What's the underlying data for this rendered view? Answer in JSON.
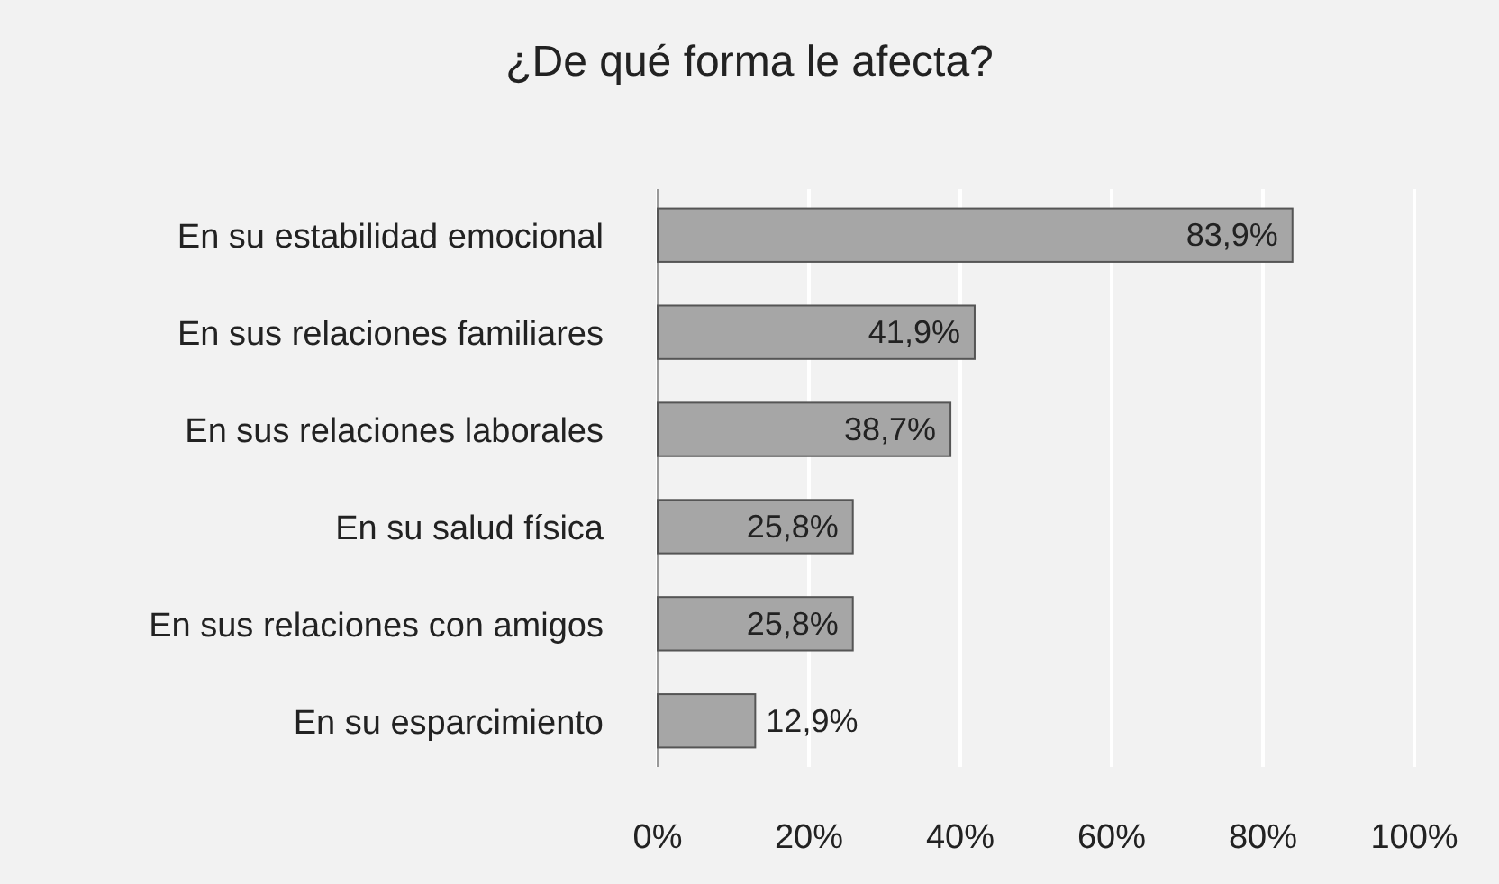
{
  "chart_data": {
    "type": "bar",
    "orientation": "horizontal",
    "title": "¿De qué forma le afecta?",
    "categories": [
      "En su estabilidad emocional",
      "En sus relaciones familiares",
      "En sus relaciones laborales",
      "En su salud física",
      "En sus relaciones con amigos",
      "En su esparcimiento"
    ],
    "values": [
      83.9,
      41.9,
      38.7,
      25.8,
      25.8,
      12.9
    ],
    "value_labels": [
      "83,9%",
      "41,9%",
      "38,7%",
      "25,8%",
      "25,8%",
      "12,9%"
    ],
    "color": "#a6a6a6",
    "xlim": [
      0,
      100
    ],
    "xticks": [
      {
        "value": 0,
        "label": "0%"
      },
      {
        "value": 20,
        "label": "20%"
      },
      {
        "value": 40,
        "label": "40%"
      },
      {
        "value": 60,
        "label": "60%"
      },
      {
        "value": 80,
        "label": "80%"
      },
      {
        "value": 100,
        "label": "100%"
      }
    ],
    "grid": "x"
  }
}
